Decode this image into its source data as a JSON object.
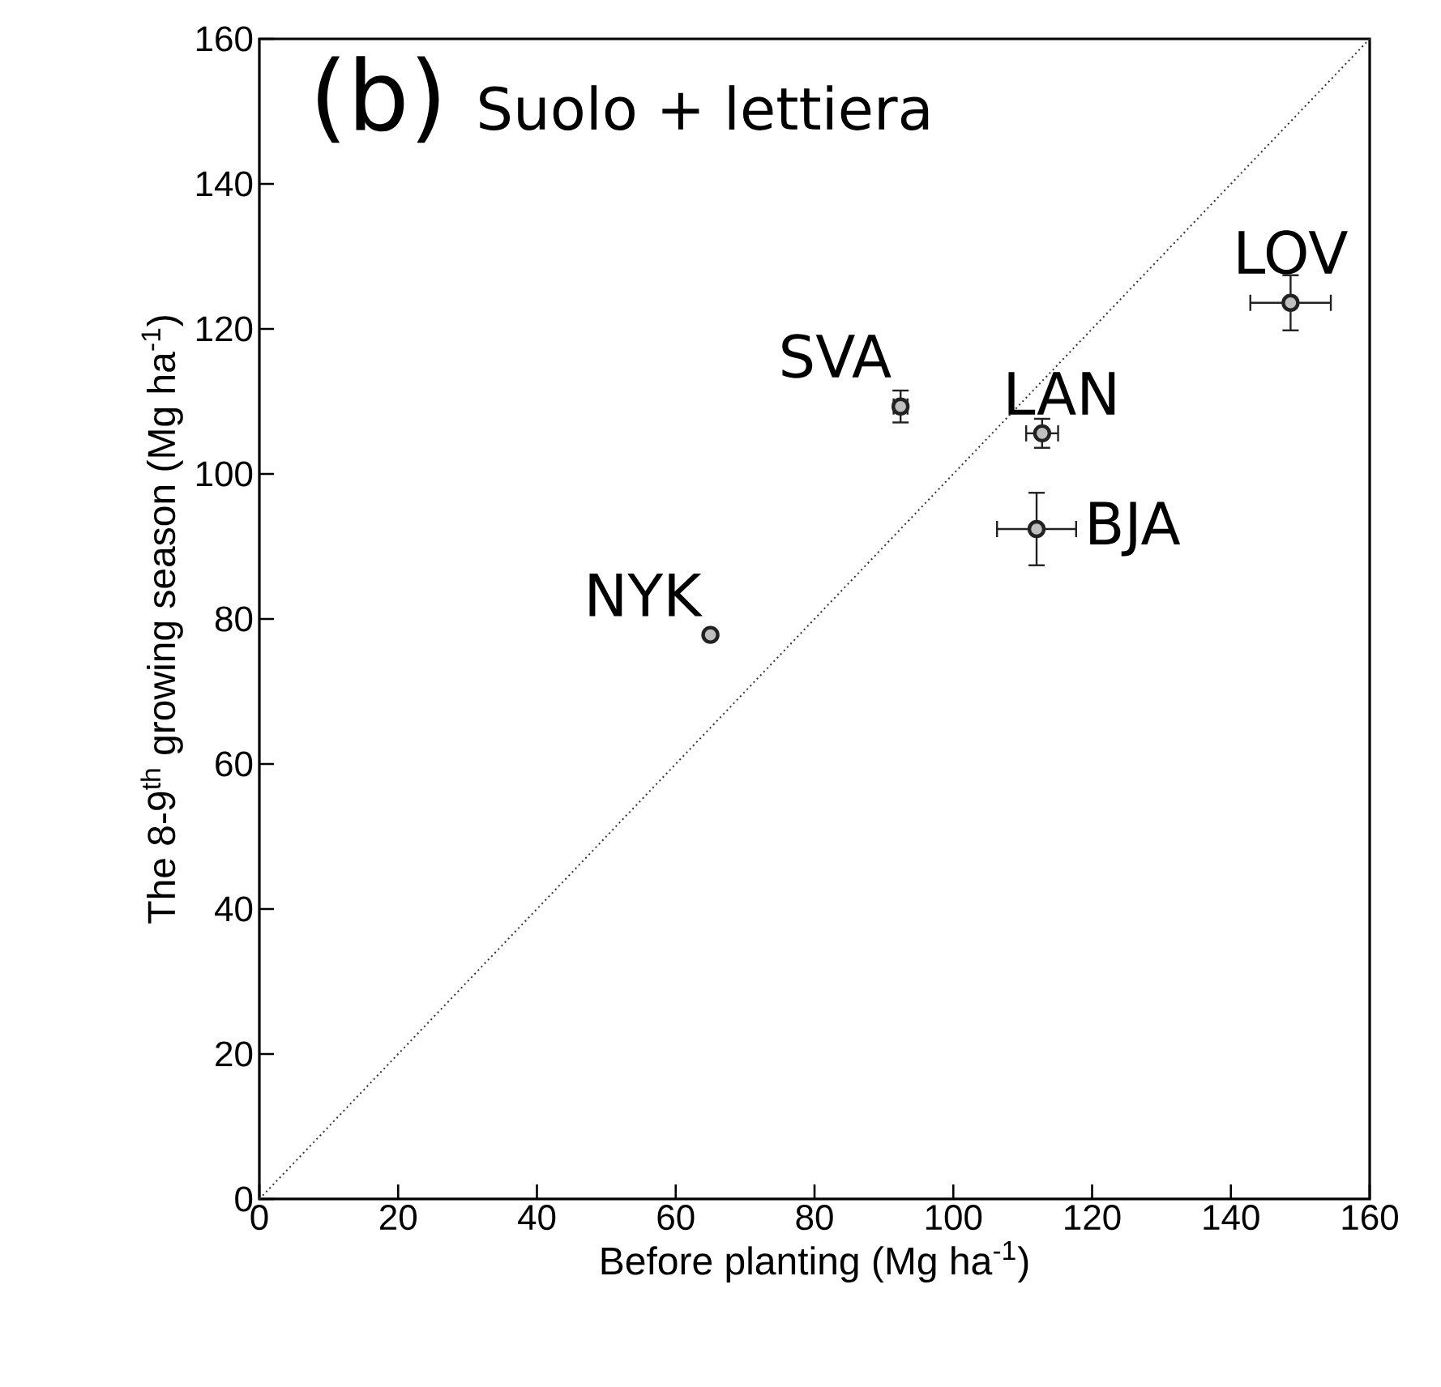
{
  "chart_data": {
    "type": "scatter",
    "xlabel": "Before planting (Mg ha$^{-1}$)",
    "ylabel": "The 8-9$^{th}$ growing season (Mg ha$^{-1}$)",
    "xlim": [
      0,
      160
    ],
    "ylim": [
      0,
      160
    ],
    "xticks": [
      0,
      20,
      40,
      60,
      80,
      100,
      120,
      140,
      160
    ],
    "yticks": [
      0,
      20,
      40,
      60,
      80,
      100,
      120,
      140,
      160
    ],
    "grid": false,
    "marker": "circle",
    "series": [
      {
        "color": "#222222",
        "x": [
          65,
          92.4,
          112.8,
          112,
          148.6
        ],
        "values": [
          77.8,
          109.3,
          105.6,
          92.4,
          123.6
        ],
        "errors": [
          null,
          2.2,
          2,
          5,
          3.8
        ],
        "xerrors": [
          null,
          1,
          2.3,
          5.7,
          5.8
        ]
      },
      {
        "type": "line",
        "marker": "none",
        "line_style": "dotted",
        "color": "#333333",
        "x": [
          0,
          160
        ],
        "values": [
          0,
          160
        ]
      }
    ],
    "annotations": [
      "(b)",
      "Suolo + lettiera",
      {
        "text": "NYK",
        "x": 65,
        "y": 77.8
      },
      {
        "text": "SVA",
        "x": 92.4,
        "y": 109.3
      },
      {
        "text": "LAN",
        "x": 112.8,
        "y": 105.6
      },
      {
        "text": "BJA",
        "x": 112,
        "y": 92.4
      },
      {
        "text": "LOV",
        "x": 148.6,
        "y": 123.6
      }
    ]
  }
}
